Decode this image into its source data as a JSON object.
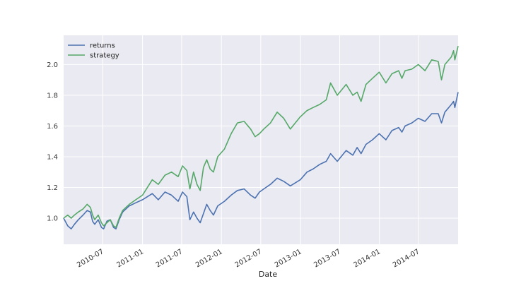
{
  "chart_data": {
    "type": "line",
    "title": "",
    "xlabel": "Date",
    "ylabel": "",
    "xlim": [
      "2010-01-01",
      "2014-12-31"
    ],
    "ylim": [
      0.83,
      2.19
    ],
    "grid": true,
    "legend": "top-left",
    "x_ticks": [
      "2010-07",
      "2011-01",
      "2011-07",
      "2012-01",
      "2012-07",
      "2013-01",
      "2013-07",
      "2014-01",
      "2014-07"
    ],
    "y_ticks": [
      "1.0",
      "1.2",
      "1.4",
      "1.6",
      "1.8",
      "2.0"
    ],
    "colors": {
      "background": "#eaeaf2",
      "grid": "#ffffff",
      "returns": "#4c72b0",
      "strategy": "#55a868"
    },
    "series": [
      {
        "name": "returns",
        "points": [
          [
            "2010-01-01",
            1.0
          ],
          [
            "2010-01-20",
            0.95
          ],
          [
            "2010-02-05",
            0.93
          ],
          [
            "2010-02-20",
            0.96
          ],
          [
            "2010-03-10",
            0.99
          ],
          [
            "2010-04-01",
            1.02
          ],
          [
            "2010-04-20",
            1.05
          ],
          [
            "2010-05-05",
            1.04
          ],
          [
            "2010-05-15",
            0.98
          ],
          [
            "2010-05-25",
            0.96
          ],
          [
            "2010-06-10",
            0.99
          ],
          [
            "2010-06-25",
            0.94
          ],
          [
            "2010-07-05",
            0.93
          ],
          [
            "2010-07-20",
            0.98
          ],
          [
            "2010-08-05",
            0.99
          ],
          [
            "2010-08-20",
            0.94
          ],
          [
            "2010-08-31",
            0.93
          ],
          [
            "2010-09-15",
            0.99
          ],
          [
            "2010-10-01",
            1.04
          ],
          [
            "2010-11-01",
            1.08
          ],
          [
            "2010-12-01",
            1.1
          ],
          [
            "2011-01-01",
            1.12
          ],
          [
            "2011-02-15",
            1.16
          ],
          [
            "2011-03-15",
            1.12
          ],
          [
            "2011-04-15",
            1.17
          ],
          [
            "2011-05-15",
            1.15
          ],
          [
            "2011-06-15",
            1.11
          ],
          [
            "2011-07-05",
            1.17
          ],
          [
            "2011-07-25",
            1.14
          ],
          [
            "2011-08-08",
            0.99
          ],
          [
            "2011-08-25",
            1.04
          ],
          [
            "2011-09-10",
            1.0
          ],
          [
            "2011-09-25",
            0.97
          ],
          [
            "2011-10-10",
            1.03
          ],
          [
            "2011-10-25",
            1.09
          ],
          [
            "2011-11-10",
            1.05
          ],
          [
            "2011-11-25",
            1.02
          ],
          [
            "2011-12-15",
            1.08
          ],
          [
            "2012-01-15",
            1.11
          ],
          [
            "2012-02-15",
            1.15
          ],
          [
            "2012-03-15",
            1.18
          ],
          [
            "2012-04-15",
            1.19
          ],
          [
            "2012-05-15",
            1.15
          ],
          [
            "2012-06-05",
            1.13
          ],
          [
            "2012-06-25",
            1.17
          ],
          [
            "2012-07-15",
            1.19
          ],
          [
            "2012-08-15",
            1.22
          ],
          [
            "2012-09-15",
            1.26
          ],
          [
            "2012-10-15",
            1.24
          ],
          [
            "2012-11-15",
            1.21
          ],
          [
            "2012-12-31",
            1.25
          ],
          [
            "2013-01-31",
            1.3
          ],
          [
            "2013-02-28",
            1.32
          ],
          [
            "2013-03-31",
            1.35
          ],
          [
            "2013-04-30",
            1.37
          ],
          [
            "2013-05-20",
            1.42
          ],
          [
            "2013-06-20",
            1.37
          ],
          [
            "2013-07-31",
            1.44
          ],
          [
            "2013-08-31",
            1.41
          ],
          [
            "2013-09-20",
            1.46
          ],
          [
            "2013-10-08",
            1.42
          ],
          [
            "2013-10-31",
            1.48
          ],
          [
            "2013-11-30",
            1.51
          ],
          [
            "2013-12-31",
            1.55
          ],
          [
            "2014-01-31",
            1.51
          ],
          [
            "2014-02-28",
            1.57
          ],
          [
            "2014-03-31",
            1.59
          ],
          [
            "2014-04-15",
            1.56
          ],
          [
            "2014-04-30",
            1.6
          ],
          [
            "2014-05-31",
            1.62
          ],
          [
            "2014-06-30",
            1.65
          ],
          [
            "2014-07-31",
            1.63
          ],
          [
            "2014-08-31",
            1.68
          ],
          [
            "2014-09-30",
            1.68
          ],
          [
            "2014-10-15",
            1.62
          ],
          [
            "2014-10-31",
            1.69
          ],
          [
            "2014-11-30",
            1.74
          ],
          [
            "2014-12-10",
            1.76
          ],
          [
            "2014-12-16",
            1.72
          ],
          [
            "2014-12-31",
            1.82
          ]
        ]
      },
      {
        "name": "strategy",
        "points": [
          [
            "2010-01-01",
            1.0
          ],
          [
            "2010-01-20",
            1.02
          ],
          [
            "2010-02-05",
            1.0
          ],
          [
            "2010-02-20",
            1.02
          ],
          [
            "2010-03-10",
            1.04
          ],
          [
            "2010-04-01",
            1.06
          ],
          [
            "2010-04-20",
            1.09
          ],
          [
            "2010-05-05",
            1.07
          ],
          [
            "2010-05-15",
            1.02
          ],
          [
            "2010-05-25",
            0.99
          ],
          [
            "2010-06-10",
            1.02
          ],
          [
            "2010-06-25",
            0.97
          ],
          [
            "2010-07-05",
            0.95
          ],
          [
            "2010-07-20",
            0.97
          ],
          [
            "2010-08-05",
            0.99
          ],
          [
            "2010-08-20",
            0.95
          ],
          [
            "2010-08-31",
            0.94
          ],
          [
            "2010-09-15",
            1.0
          ],
          [
            "2010-10-01",
            1.05
          ],
          [
            "2010-11-01",
            1.09
          ],
          [
            "2010-12-01",
            1.12
          ],
          [
            "2011-01-01",
            1.15
          ],
          [
            "2011-02-15",
            1.25
          ],
          [
            "2011-03-15",
            1.22
          ],
          [
            "2011-04-15",
            1.28
          ],
          [
            "2011-05-15",
            1.3
          ],
          [
            "2011-06-15",
            1.27
          ],
          [
            "2011-07-05",
            1.34
          ],
          [
            "2011-07-25",
            1.31
          ],
          [
            "2011-08-08",
            1.19
          ],
          [
            "2011-08-25",
            1.3
          ],
          [
            "2011-09-10",
            1.22
          ],
          [
            "2011-09-25",
            1.18
          ],
          [
            "2011-10-10",
            1.33
          ],
          [
            "2011-10-25",
            1.38
          ],
          [
            "2011-11-10",
            1.32
          ],
          [
            "2011-11-25",
            1.3
          ],
          [
            "2011-12-15",
            1.4
          ],
          [
            "2012-01-15",
            1.45
          ],
          [
            "2012-02-15",
            1.55
          ],
          [
            "2012-03-15",
            1.62
          ],
          [
            "2012-04-15",
            1.63
          ],
          [
            "2012-05-15",
            1.58
          ],
          [
            "2012-06-05",
            1.53
          ],
          [
            "2012-06-25",
            1.55
          ],
          [
            "2012-07-15",
            1.58
          ],
          [
            "2012-08-15",
            1.62
          ],
          [
            "2012-09-15",
            1.69
          ],
          [
            "2012-10-15",
            1.65
          ],
          [
            "2012-11-15",
            1.58
          ],
          [
            "2012-12-31",
            1.66
          ],
          [
            "2013-01-31",
            1.7
          ],
          [
            "2013-02-28",
            1.72
          ],
          [
            "2013-03-31",
            1.74
          ],
          [
            "2013-04-30",
            1.77
          ],
          [
            "2013-05-20",
            1.88
          ],
          [
            "2013-06-20",
            1.8
          ],
          [
            "2013-07-31",
            1.87
          ],
          [
            "2013-08-31",
            1.8
          ],
          [
            "2013-09-20",
            1.82
          ],
          [
            "2013-10-08",
            1.76
          ],
          [
            "2013-10-31",
            1.87
          ],
          [
            "2013-11-30",
            1.91
          ],
          [
            "2013-12-31",
            1.95
          ],
          [
            "2014-01-31",
            1.88
          ],
          [
            "2014-02-28",
            1.94
          ],
          [
            "2014-03-31",
            1.96
          ],
          [
            "2014-04-15",
            1.91
          ],
          [
            "2014-04-30",
            1.96
          ],
          [
            "2014-05-31",
            1.97
          ],
          [
            "2014-06-30",
            2.0
          ],
          [
            "2014-07-31",
            1.96
          ],
          [
            "2014-08-31",
            2.03
          ],
          [
            "2014-09-30",
            2.02
          ],
          [
            "2014-10-15",
            1.9
          ],
          [
            "2014-10-31",
            2.0
          ],
          [
            "2014-11-30",
            2.05
          ],
          [
            "2014-12-10",
            2.09
          ],
          [
            "2014-12-16",
            2.03
          ],
          [
            "2014-12-31",
            2.12
          ]
        ]
      }
    ]
  }
}
